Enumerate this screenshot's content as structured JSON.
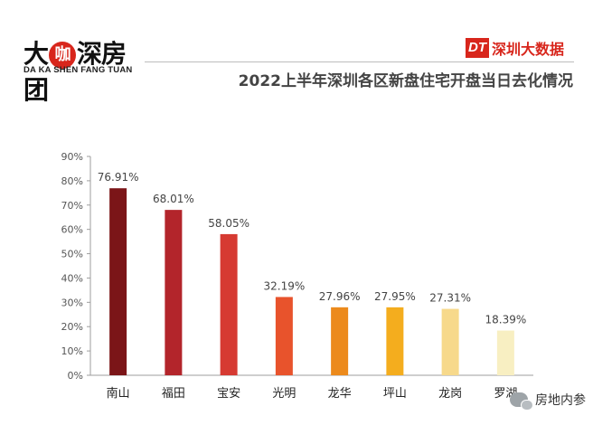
{
  "brand": {
    "logo_cn": [
      "大",
      "咖",
      "深房团"
    ],
    "logo_en": "DA KA SHEN FANG TUAN",
    "dt_badge": "DT",
    "dt_text": "深圳大数据"
  },
  "footer": {
    "text": "房地内参",
    "icon": "wechat-icon"
  },
  "colors": {
    "accent": "#d8261c",
    "title": "#444444",
    "grid": "#d9d9d9"
  },
  "chart_data": {
    "type": "bar",
    "title": "2022上半年深圳各区新盘住宅开盘当日去化情况",
    "categories": [
      "南山",
      "福田",
      "宝安",
      "光明",
      "龙华",
      "坪山",
      "龙岗",
      "罗湖"
    ],
    "values": [
      76.91,
      68.01,
      58.05,
      32.19,
      27.96,
      27.95,
      27.31,
      18.39
    ],
    "labels": [
      "76.91%",
      "68.01%",
      "58.05%",
      "32.19%",
      "27.96%",
      "27.95%",
      "27.31%",
      "18.39%"
    ],
    "colors": [
      "#7b1518",
      "#b3252b",
      "#d63a32",
      "#e8532c",
      "#ec8a1c",
      "#f4ad1e",
      "#f7d98b",
      "#f8efc2"
    ],
    "yticks": [
      "0%",
      "10%",
      "20%",
      "30%",
      "40%",
      "50%",
      "60%",
      "70%",
      "80%",
      "90%"
    ],
    "ylim": [
      0,
      90
    ],
    "xlabel": "",
    "ylabel": "",
    "grid": false,
    "legend": "none"
  }
}
